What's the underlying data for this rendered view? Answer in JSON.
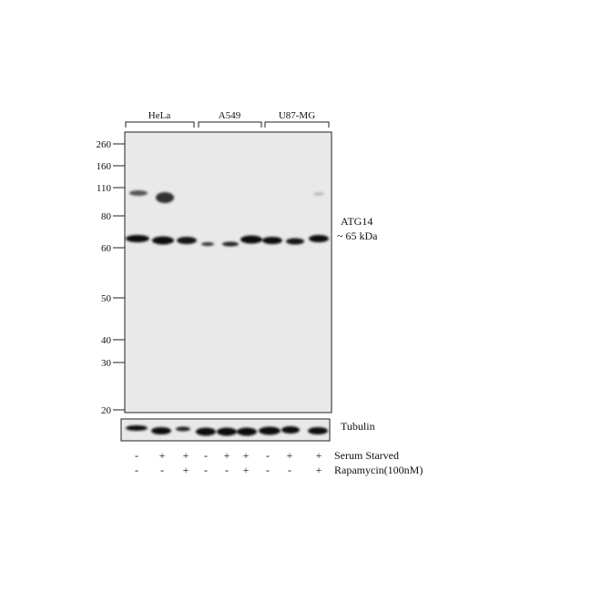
{
  "groups": [
    "HeLa",
    "A549",
    "U87-MG"
  ],
  "markers": [
    260,
    160,
    110,
    80,
    60,
    50,
    40,
    30,
    20
  ],
  "band_label": "ATG14",
  "band_size": "~ 65 kDa",
  "loading_label": "Tubulin",
  "treatments": [
    {
      "name": "Serum Starved",
      "signs": [
        "-",
        "+",
        "+",
        "-",
        "+",
        "+",
        "-",
        "+",
        "+"
      ]
    },
    {
      "name": "Rapamycin(100nM)",
      "signs": [
        "-",
        "-",
        "+",
        "-",
        "-",
        "+",
        "-",
        "-",
        "+"
      ]
    }
  ]
}
